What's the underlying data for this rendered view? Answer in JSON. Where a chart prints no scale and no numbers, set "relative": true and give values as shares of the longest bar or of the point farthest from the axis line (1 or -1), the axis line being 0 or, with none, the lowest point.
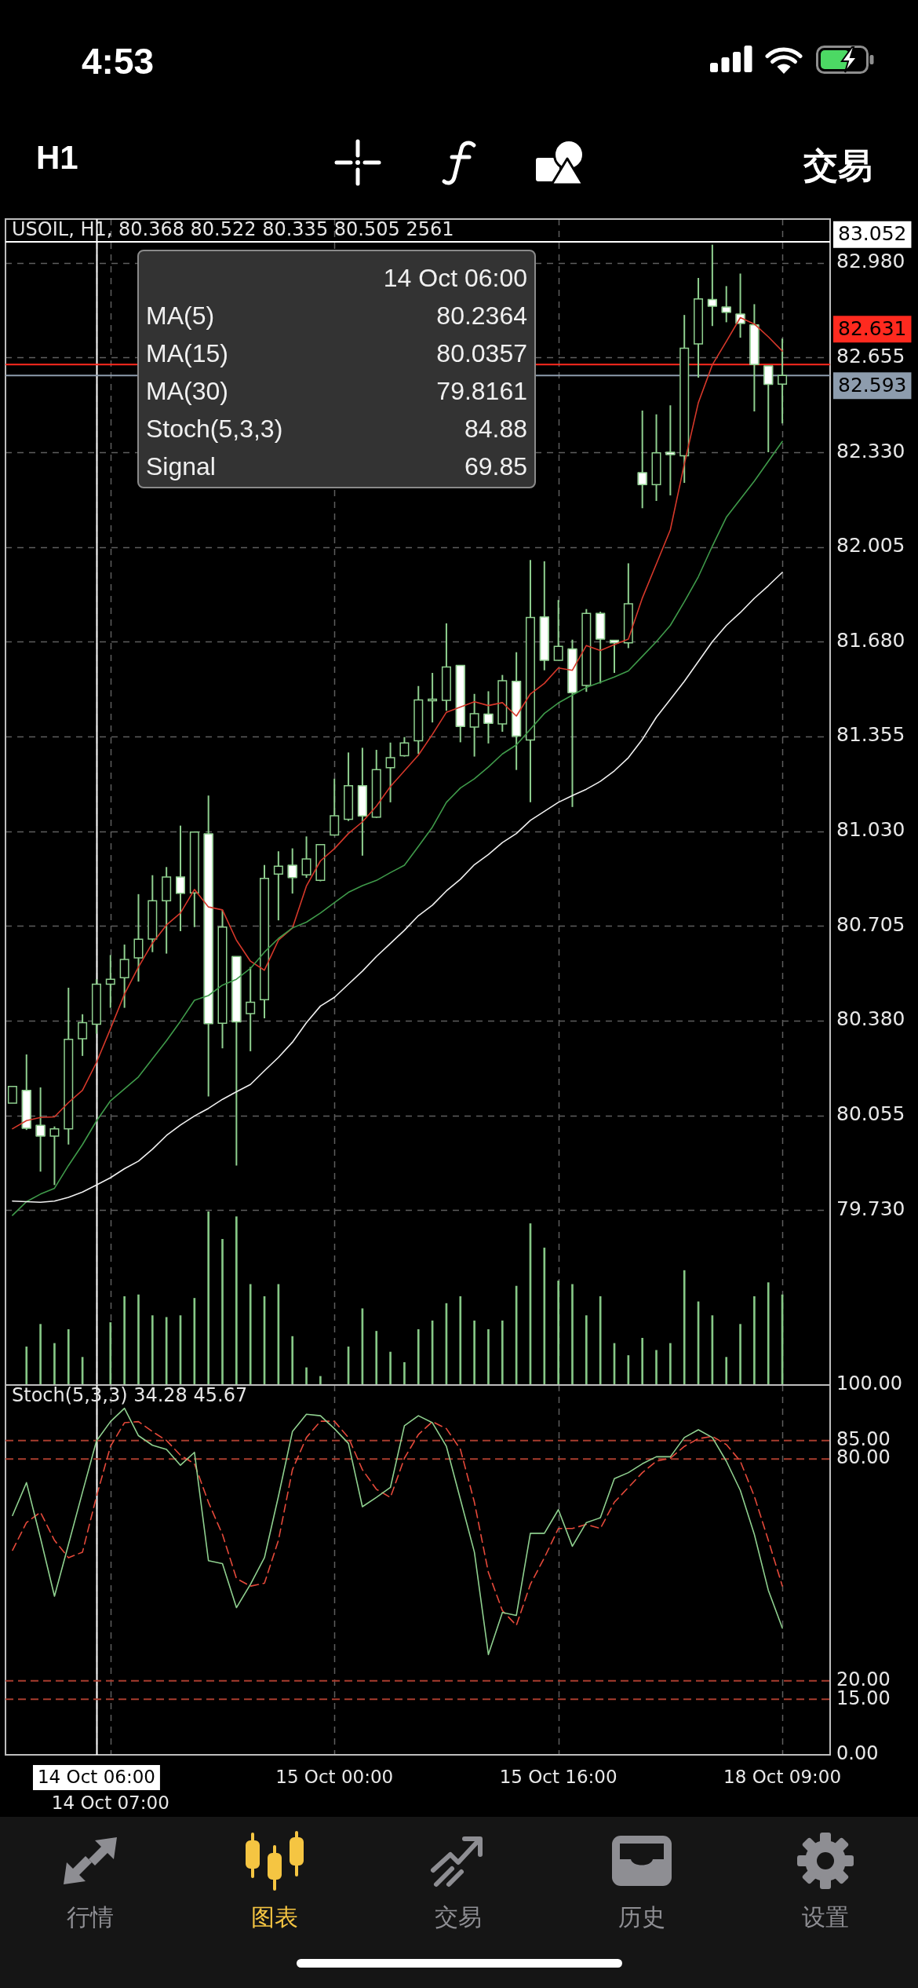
{
  "chart_data": [
    {
      "type": "other",
      "annotations": [
        "4:53",
        "H1",
        "交易"
      ]
    },
    {
      "type": "candlestick",
      "title": "USOIL, H1, 80.368 80.522 80.335 80.505 2561",
      "categories": [
        null,
        null,
        null,
        null,
        null,
        null,
        "14 Oct 06:00",
        "14 Oct 07:00",
        null,
        null,
        null,
        null,
        null,
        null,
        null,
        null,
        null,
        null,
        null,
        null,
        null,
        null,
        null,
        "15 Oct 00:00",
        null,
        null,
        null,
        null,
        null,
        null,
        null,
        null,
        null,
        null,
        null,
        null,
        null,
        null,
        null,
        "15 Oct 16:00",
        null,
        null,
        null,
        null,
        null,
        null,
        null,
        null,
        null,
        null,
        null,
        null,
        null,
        null,
        null,
        "18 Oct 09:00"
      ],
      "series": [
        {
          "type": "line",
          "color": "#f0f0f0",
          "values": [
            79.761,
            79.759,
            79.757,
            79.761,
            79.774,
            79.792,
            79.8161,
            79.841,
            79.872,
            79.898,
            79.939,
            79.986,
            80.022,
            80.053,
            80.079,
            80.11,
            80.136,
            80.161,
            80.208,
            80.254,
            80.306,
            80.373,
            80.43,
            80.46,
            80.505,
            80.55,
            80.6,
            80.645,
            80.69,
            80.74,
            80.776,
            80.825,
            80.865,
            80.915,
            80.95,
            80.991,
            81.022,
            81.067,
            81.098,
            81.129,
            81.152,
            81.174,
            81.201,
            81.237,
            81.282,
            81.345,
            81.421,
            81.482,
            81.544,
            81.612,
            81.68,
            81.736,
            81.78,
            81.829,
            81.872,
            81.918
          ]
        },
        {
          "type": "line",
          "color": "#3f9a4a",
          "values": [
            79.712,
            79.759,
            79.785,
            79.805,
            79.883,
            79.955,
            80.0357,
            80.105,
            80.146,
            80.187,
            80.249,
            80.311,
            80.378,
            80.45,
            80.466,
            80.502,
            80.522,
            80.559,
            80.615,
            80.662,
            80.698,
            80.718,
            80.749,
            80.785,
            80.82,
            80.843,
            80.861,
            80.888,
            80.913,
            80.978,
            81.044,
            81.129,
            81.178,
            81.21,
            81.25,
            81.295,
            81.326,
            81.38,
            81.434,
            81.47,
            81.497,
            81.523,
            81.541,
            81.559,
            81.58,
            81.63,
            81.68,
            81.736,
            81.817,
            81.903,
            82.008,
            82.107,
            82.169,
            82.231,
            82.299,
            82.367
          ]
        },
        {
          "type": "line",
          "color": "#d6382a",
          "values": [
            80.009,
            80.037,
            80.048,
            80.05,
            80.099,
            80.141,
            80.2364,
            80.352,
            80.471,
            80.564,
            80.646,
            80.708,
            80.749,
            80.83,
            80.77,
            80.76,
            80.656,
            80.584,
            80.553,
            80.656,
            80.698,
            80.842,
            80.928,
            80.97,
            81.022,
            81.062,
            81.116,
            81.183,
            81.237,
            81.291,
            81.362,
            81.438,
            81.456,
            81.474,
            81.461,
            81.471,
            81.425,
            81.501,
            81.537,
            81.59,
            81.582,
            81.667,
            81.65,
            81.67,
            81.689,
            81.83,
            81.947,
            82.064,
            82.29,
            82.5,
            82.63,
            82.71,
            82.792,
            82.77,
            82.726,
            82.677
          ]
        },
        {
          "color": "#8fd08f",
          "colors": [
            "#000000",
            "#ffffff",
            "#ffffff",
            "#000000",
            "#000000",
            "#000000",
            "#000000",
            "#000000",
            "#000000",
            "#000000",
            "#000000",
            "#000000",
            "#ffffff",
            "#000000",
            "#ffffff",
            "#000000",
            "#ffffff",
            "#000000",
            "#000000",
            "#000000",
            "#ffffff",
            "#000000",
            "#000000",
            "#000000",
            "#000000",
            "#ffffff",
            "#000000",
            "#000000",
            "#000000",
            "#000000",
            "#000000",
            "#000000",
            "#ffffff",
            "#000000",
            "#ffffff",
            "#000000",
            "#ffffff",
            "#000000",
            "#ffffff",
            "#000000",
            "#ffffff",
            "#000000",
            "#ffffff",
            "#ffffff",
            "#000000",
            "#ffffff",
            "#000000",
            "#ffffff",
            "#000000",
            "#000000",
            "#ffffff",
            "#ffffff",
            "#ffffff",
            "#ffffff",
            "#ffffff",
            "#000000"
          ],
          "ohlc": [
            [
              80.097,
              80.154,
              80.097,
              80.154
            ],
            [
              80.141,
              80.264,
              80.005,
              80.011
            ],
            [
              80.021,
              80.151,
              79.862,
              79.984
            ],
            [
              79.984,
              80.017,
              79.816,
              80.009
            ],
            [
              80.009,
              80.493,
              79.955,
              80.316
            ],
            [
              80.318,
              80.402,
              80.259,
              80.373
            ],
            [
              80.368,
              80.522,
              80.335,
              80.505
            ],
            [
              80.505,
              80.605,
              80.424,
              80.522
            ],
            [
              80.527,
              80.641,
              80.424,
              80.59
            ],
            [
              80.595,
              80.814,
              80.514,
              80.659
            ],
            [
              80.66,
              80.879,
              80.615,
              80.791
            ],
            [
              80.791,
              80.907,
              80.61,
              80.873
            ],
            [
              80.873,
              81.049,
              80.687,
              80.817
            ],
            [
              80.818,
              81.027,
              80.701,
              81.027
            ],
            [
              81.021,
              81.152,
              80.12,
              80.37
            ],
            [
              80.371,
              80.76,
              80.285,
              80.701
            ],
            [
              80.6,
              80.6,
              79.883,
              80.376
            ],
            [
              80.404,
              80.564,
              80.275,
              80.443
            ],
            [
              80.452,
              80.914,
              80.388,
              80.868
            ],
            [
              80.883,
              80.961,
              80.724,
              80.91
            ],
            [
              80.913,
              80.971,
              80.816,
              80.871
            ],
            [
              80.88,
              81.012,
              80.87,
              80.935
            ],
            [
              80.861,
              80.984,
              80.858,
              80.984
            ],
            [
              81.017,
              81.21,
              81.015,
              81.083
            ],
            [
              81.071,
              81.3,
              81.065,
              81.186
            ],
            [
              81.186,
              81.316,
              80.946,
              81.082
            ],
            [
              81.078,
              81.309,
              81.076,
              81.241
            ],
            [
              81.248,
              81.334,
              81.129,
              81.282
            ],
            [
              81.289,
              81.353,
              81.286,
              81.333
            ],
            [
              81.34,
              81.528,
              81.295,
              81.48
            ],
            [
              81.48,
              81.573,
              81.403,
              81.483
            ],
            [
              81.479,
              81.743,
              81.443,
              81.593
            ],
            [
              81.599,
              81.599,
              81.335,
              81.389
            ],
            [
              81.387,
              81.501,
              81.286,
              81.433
            ],
            [
              81.432,
              81.51,
              81.331,
              81.4
            ],
            [
              81.398,
              81.566,
              81.371,
              81.546
            ],
            [
              81.544,
              81.644,
              81.24,
              81.356
            ],
            [
              81.343,
              81.96,
              81.129,
              81.763
            ],
            [
              81.765,
              81.956,
              81.582,
              81.616
            ],
            [
              81.616,
              81.823,
              81.616,
              81.664
            ],
            [
              81.655,
              81.687,
              81.113,
              81.505
            ],
            [
              81.53,
              81.792,
              81.508,
              81.777
            ],
            [
              81.777,
              81.783,
              81.537,
              81.689
            ],
            [
              81.685,
              81.685,
              81.573,
              81.676
            ],
            [
              81.676,
              81.949,
              81.658,
              81.81
            ],
            [
              82.26,
              82.473,
              82.138,
              82.219
            ],
            [
              82.219,
              82.46,
              82.163,
              82.328
            ],
            [
              82.33,
              82.491,
              82.182,
              82.322
            ],
            [
              82.318,
              82.801,
              82.225,
              82.687
            ],
            [
              82.702,
              82.928,
              82.586,
              82.856
            ],
            [
              82.854,
              83.042,
              82.763,
              82.831
            ],
            [
              82.828,
              82.9,
              82.776,
              82.81
            ],
            [
              82.804,
              82.943,
              82.723,
              82.772
            ],
            [
              82.767,
              82.838,
              82.47,
              82.631
            ],
            [
              82.626,
              82.626,
              82.33,
              82.563
            ],
            [
              82.564,
              82.72,
              82.429,
              82.593
            ]
          ]
        }
      ],
      "ylim": [
        79.13,
        83.13
      ],
      "yticks": [
        {
          "value": 79.73,
          "label": "79.730"
        },
        80.055,
        {
          "value": 80.38,
          "label": "80.380"
        },
        80.705,
        {
          "value": 81.03,
          "label": "81.030"
        },
        81.355,
        {
          "value": 81.68,
          "label": "81.680"
        },
        82.005,
        {
          "value": 82.33,
          "label": "82.330"
        },
        82.655,
        {
          "value": 82.98,
          "label": "82.980"
        }
      ],
      "grid": true,
      "tick_labels": "y",
      "ref_lines": [
        {
          "axis": "x",
          "value": "14 Oct 06:00",
          "color": "#ffffff"
        },
        {
          "axis": "y",
          "value": 83.052,
          "label": "83.052",
          "color": "#ffffff"
        },
        {
          "axis": "y",
          "value": 82.631,
          "label": "82.631",
          "color": "#ff2a1f"
        },
        {
          "axis": "y",
          "value": 82.593,
          "label": "82.593",
          "color": "#8d9cad"
        }
      ],
      "annotations": [
        "14 Oct 06:00",
        "MA(5)",
        "80.2364",
        "MA(15)",
        "80.0357",
        "MA(30)",
        "79.8161",
        "Stoch(5,3,3)",
        "84.88",
        "Signal",
        "69.85"
      ]
    },
    {
      "type": "bar",
      "relative": true,
      "tick_labels": false,
      "color": "#86c886",
      "categories": [
        null,
        null,
        null,
        null,
        null,
        null,
        "14 Oct 06:00",
        "14 Oct 07:00",
        null,
        null,
        null,
        null,
        null,
        null,
        null,
        null,
        null,
        null,
        null,
        null,
        null,
        null,
        null,
        "15 Oct 00:00",
        null,
        null,
        null,
        null,
        null,
        null,
        null,
        null,
        null,
        null,
        null,
        null,
        null,
        null,
        null,
        "15 Oct 16:00",
        null,
        null,
        null,
        null,
        null,
        null,
        null,
        null,
        null,
        null,
        null,
        null,
        null,
        null,
        null,
        "18 Oct 09:00"
      ],
      "values": [
        null,
        0.22,
        0.35,
        0.24,
        0.32,
        0.16,
        null,
        0.36,
        0.51,
        0.52,
        0.4,
        0.39,
        0.4,
        0.5,
        1,
        0.84,
        0.97,
        0.58,
        0.51,
        0.58,
        0.28,
        0.1,
        0.05,
        null,
        0.22,
        0.44,
        0.31,
        0.19,
        0.13,
        0.32,
        0.37,
        0.47,
        0.51,
        0.37,
        0.32,
        0.37,
        0.57,
        0.93,
        0.79,
        0.6,
        0.58,
        0.4,
        0.51,
        0.24,
        0.17,
        0.27,
        0.2,
        0.24,
        0.66,
        0.48,
        0.4,
        0.16,
        0.35,
        0.51,
        0.59,
        0.52
      ]
    },
    {
      "type": "line",
      "title": "Stoch(5,3,3) 34.28 45.67",
      "categories": [
        null,
        null,
        null,
        null,
        null,
        null,
        "14 Oct 06:00",
        "14 Oct 07:00",
        null,
        null,
        null,
        null,
        null,
        null,
        null,
        null,
        null,
        null,
        null,
        null,
        null,
        null,
        null,
        "15 Oct 00:00",
        null,
        null,
        null,
        null,
        null,
        null,
        null,
        null,
        null,
        null,
        null,
        null,
        null,
        null,
        null,
        "15 Oct 16:00",
        null,
        null,
        null,
        null,
        null,
        null,
        null,
        null,
        null,
        null,
        null,
        null,
        null,
        null,
        null,
        "18 Oct 09:00"
      ],
      "series": [
        {
          "color": "#8fd08f",
          "values": [
            64.7,
            73.6,
            58.6,
            42.9,
            56.9,
            71.0,
            84.88,
            90.1,
            93.7,
            86.3,
            83.7,
            82.6,
            78.3,
            81.8,
            52.5,
            51.7,
            39.8,
            46.1,
            53.3,
            69.9,
            87.4,
            92.1,
            91.7,
            88.2,
            84.2,
            67.1,
            69.6,
            72.3,
            89.0,
            91.7,
            89.8,
            83.4,
            69.1,
            54.8,
            27.1,
            38.5,
            37.7,
            59.9,
            59.9,
            66.3,
            56.4,
            62.8,
            64.1,
            74.7,
            76.3,
            78.7,
            80.6,
            80.6,
            85.8,
            87.9,
            85.8,
            79.4,
            71.5,
            59.6,
            44.5,
            34.28
          ]
        },
        {
          "color": "#e5493a",
          "line_style": "dashed",
          "values": [
            55.3,
            62.8,
            65.6,
            58.0,
            53.3,
            54.8,
            69.85,
            83.4,
            89.8,
            90.1,
            87.4,
            85.0,
            81.0,
            78.7,
            68.3,
            59.6,
            47.7,
            45.6,
            46.4,
            58.0,
            77.1,
            85.8,
            90.2,
            90.2,
            85.8,
            77.1,
            71.8,
            69.6,
            80.2,
            86.6,
            90.1,
            88.2,
            82.6,
            68.3,
            49.3,
            39.0,
            35.0,
            46.1,
            53.3,
            61.2,
            61.2,
            62.3,
            61.2,
            68.3,
            72.3,
            76.3,
            79.4,
            80.2,
            83.4,
            85.5,
            86.1,
            83.9,
            79.4,
            69.9,
            58.0,
            45.67
          ]
        }
      ],
      "ylim": [
        0,
        100
      ],
      "yticks": [
        {
          "value": 0,
          "label": "0.00"
        },
        {
          "value": 15,
          "label": "15.00"
        },
        {
          "value": 20,
          "label": "20.00"
        },
        {
          "value": 80,
          "label": "80.00"
        },
        {
          "value": 85,
          "label": "85.00"
        },
        {
          "value": 100,
          "label": "100.00"
        }
      ],
      "grid": "x",
      "ref_lines": [
        {
          "axis": "x",
          "value": "14 Oct 06:00",
          "color": "#ffffff"
        },
        {
          "axis": "y",
          "value": 85,
          "color": "#a83c2e",
          "line_style": "dashed"
        },
        {
          "axis": "y",
          "value": 80,
          "color": "#a83c2e",
          "line_style": "dashed"
        },
        {
          "axis": "y",
          "value": 20,
          "color": "#a83c2e",
          "line_style": "dashed"
        },
        {
          "axis": "y",
          "value": 15,
          "color": "#a83c2e",
          "line_style": "dashed"
        }
      ]
    },
    {
      "type": "other",
      "annotations": [
        "行情",
        "图表",
        "交易",
        "历史",
        "设置"
      ]
    }
  ]
}
